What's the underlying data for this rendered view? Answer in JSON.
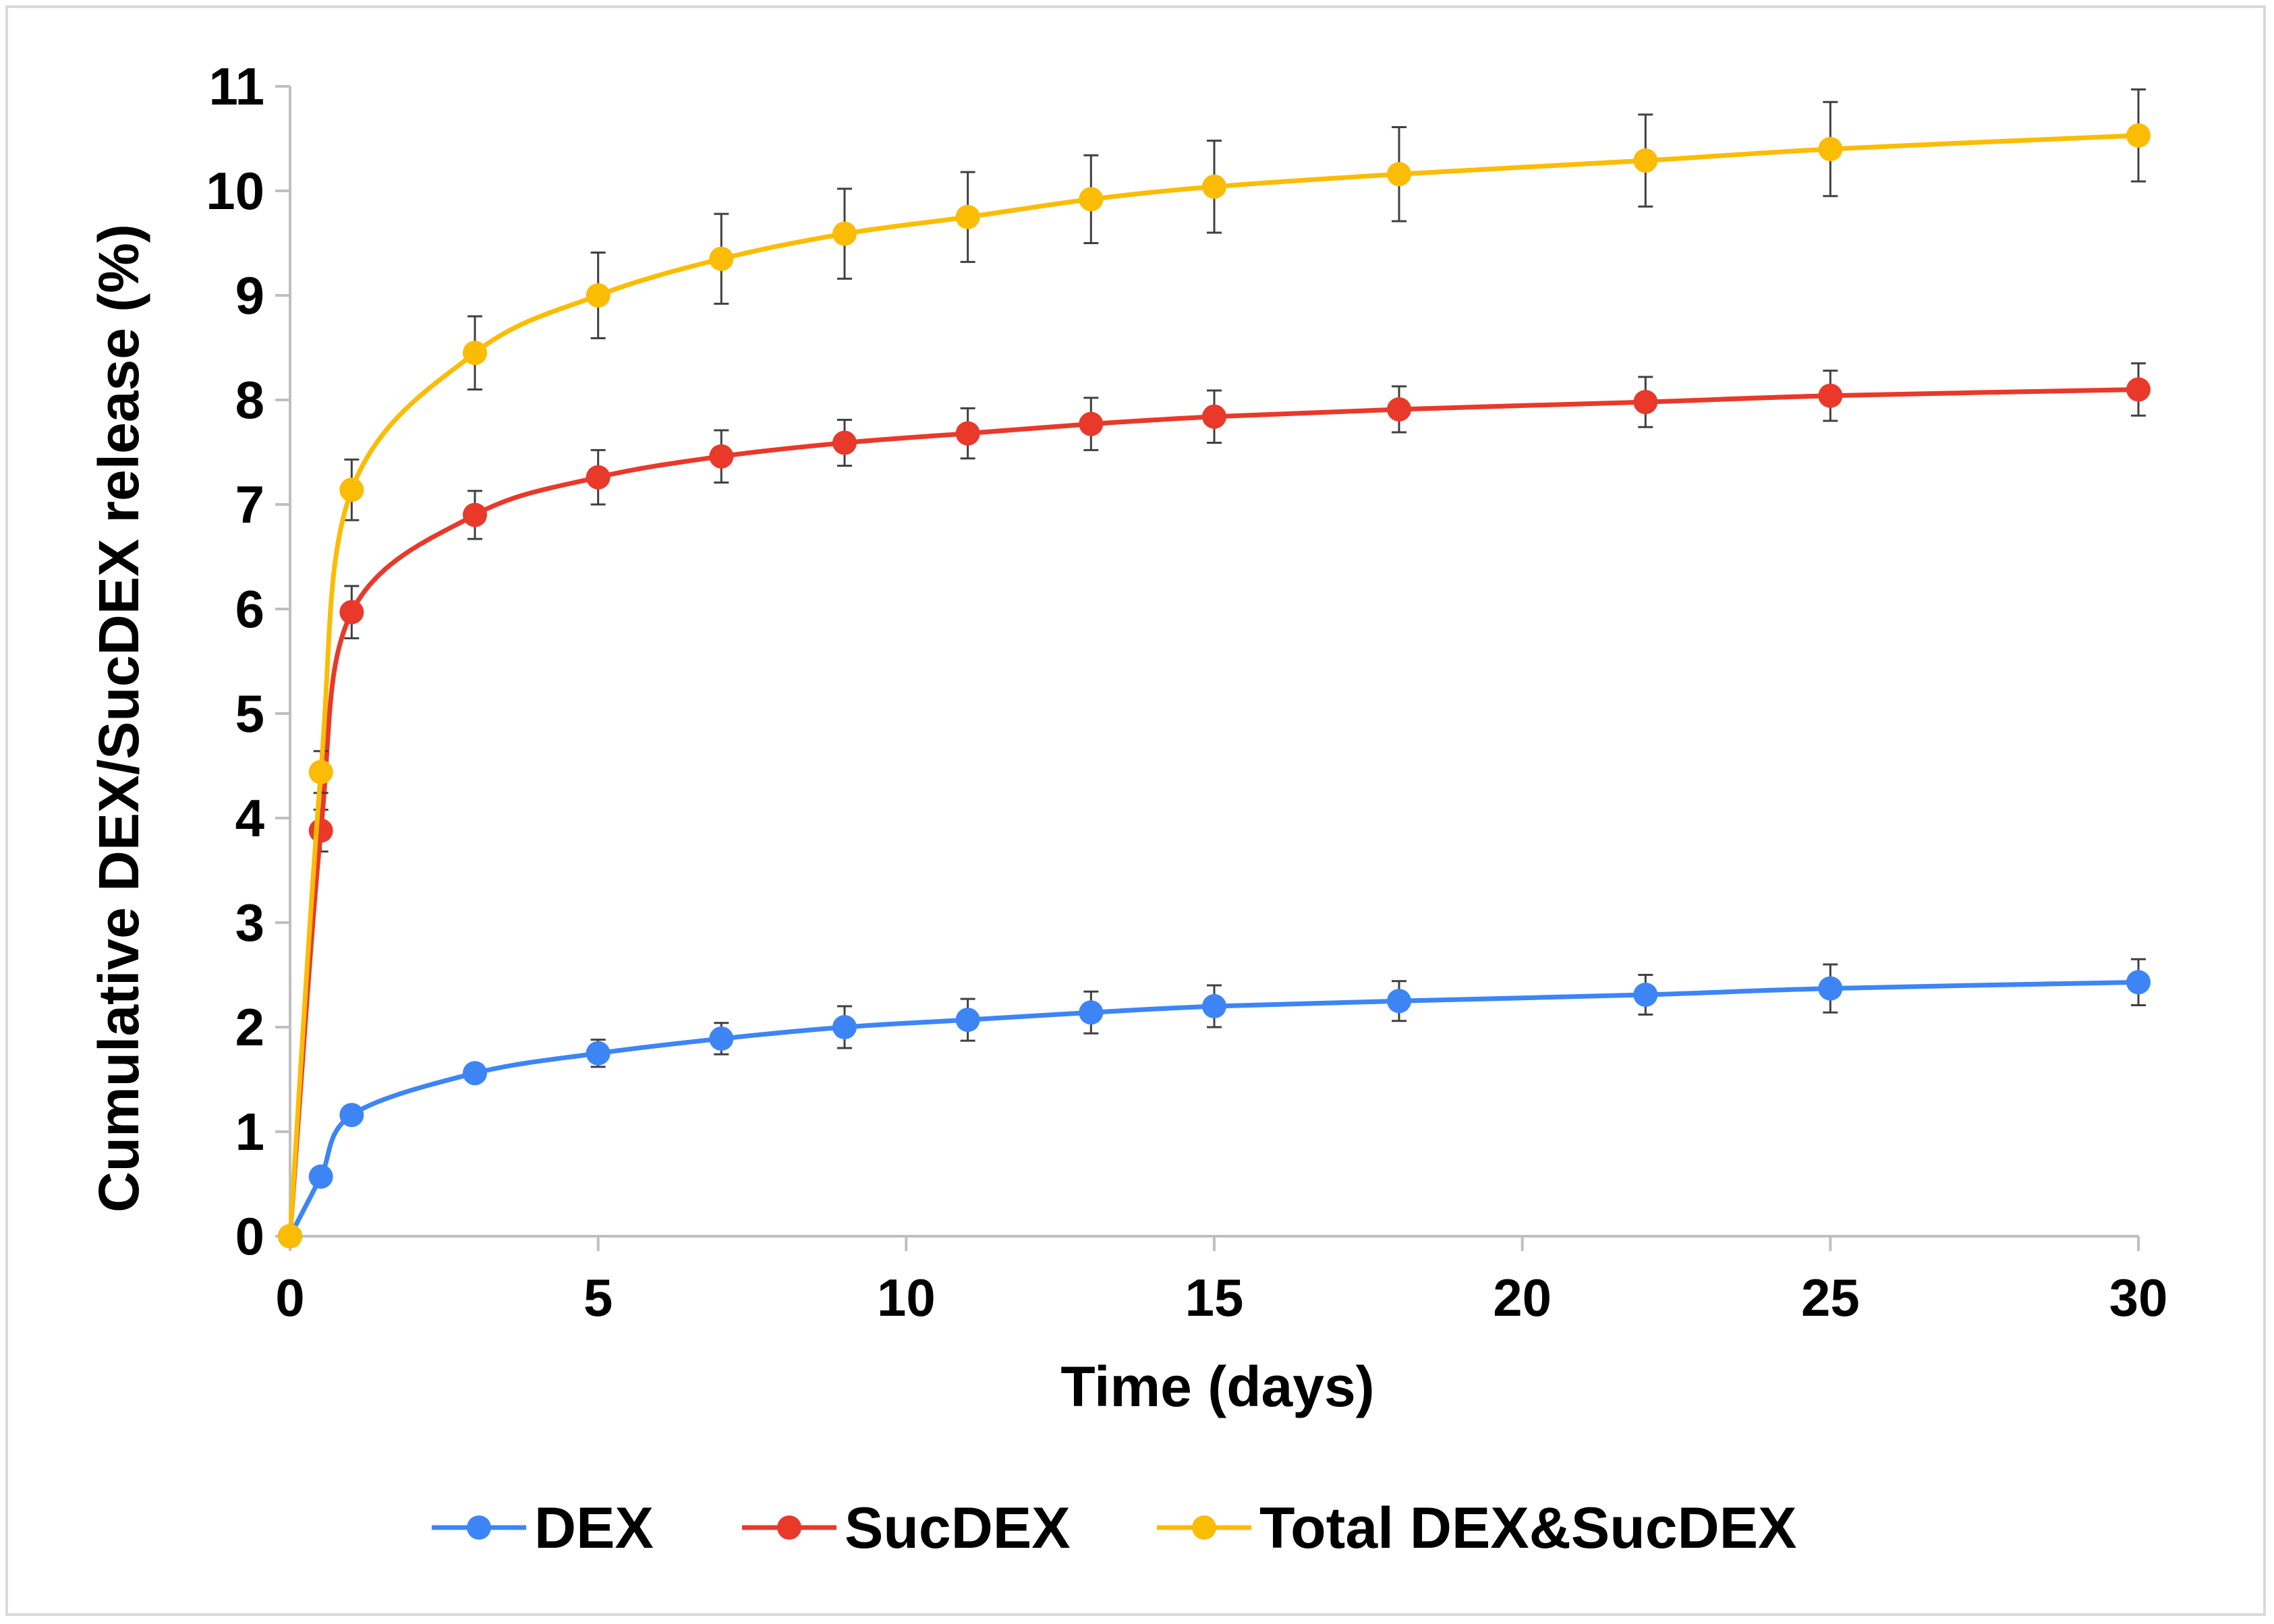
{
  "chart_data": {
    "type": "line",
    "title": "",
    "xlabel": "Time (days)",
    "ylabel": "Cumulative DEX/SucDEX release (%)",
    "xlim": [
      0,
      30
    ],
    "ylim": [
      0,
      11
    ],
    "x_ticks": [
      "0",
      "5",
      "10",
      "15",
      "20",
      "25",
      "30"
    ],
    "y_ticks": [
      "0",
      "1",
      "2",
      "3",
      "4",
      "5",
      "6",
      "7",
      "8",
      "9",
      "10",
      "11"
    ],
    "grid": false,
    "legend_position": "bottom",
    "x": [
      0,
      0.5,
      1,
      3,
      5,
      7,
      9,
      11,
      13,
      15,
      18,
      22,
      25,
      30
    ],
    "series": [
      {
        "name": "DEX",
        "color": "#3d85f5",
        "values": [
          0,
          0.57,
          1.16,
          1.56,
          1.75,
          1.89,
          2.0,
          2.07,
          2.14,
          2.2,
          2.25,
          2.31,
          2.37,
          2.43
        ],
        "errors": [
          0,
          0.05,
          0.06,
          0.08,
          0.13,
          0.15,
          0.2,
          0.2,
          0.2,
          0.2,
          0.19,
          0.19,
          0.23,
          0.22
        ]
      },
      {
        "name": "SucDEX",
        "color": "#e8392b",
        "values": [
          0,
          3.88,
          5.97,
          6.9,
          7.26,
          7.46,
          7.59,
          7.68,
          7.77,
          7.84,
          7.91,
          7.98,
          8.04,
          8.1
        ],
        "errors": [
          0,
          0.2,
          0.25,
          0.23,
          0.26,
          0.25,
          0.22,
          0.24,
          0.25,
          0.25,
          0.22,
          0.24,
          0.24,
          0.25
        ]
      },
      {
        "name": "Total DEX&SucDEX",
        "color": "#fbbc05",
        "values": [
          0,
          4.44,
          7.14,
          8.45,
          9.0,
          9.35,
          9.59,
          9.75,
          9.92,
          10.04,
          10.16,
          10.29,
          10.4,
          10.53
        ],
        "errors": [
          0,
          0.2,
          0.29,
          0.35,
          0.41,
          0.43,
          0.43,
          0.43,
          0.42,
          0.44,
          0.45,
          0.44,
          0.45,
          0.44
        ]
      }
    ]
  }
}
